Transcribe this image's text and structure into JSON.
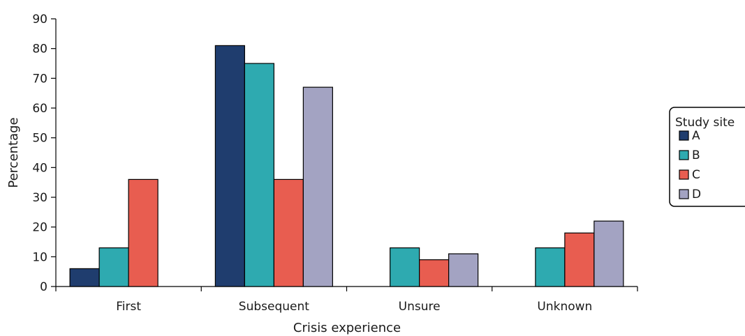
{
  "chart_data": {
    "type": "bar",
    "xlabel": "Crisis experience",
    "ylabel": "Percentage",
    "ylim": [
      0,
      90
    ],
    "yticks": [
      0,
      10,
      20,
      30,
      40,
      50,
      60,
      70,
      80,
      90
    ],
    "grid": false,
    "legend_position": "right",
    "legend_title": "Study site",
    "categories": [
      "First",
      "Subsequent",
      "Unsure",
      "Unknown"
    ],
    "series": [
      {
        "name": "A",
        "color": "#1f3d6e",
        "values": [
          6,
          81,
          null,
          null
        ]
      },
      {
        "name": "B",
        "color": "#2eaab0",
        "values": [
          13,
          75,
          13,
          13
        ]
      },
      {
        "name": "C",
        "color": "#e85d50",
        "values": [
          36,
          36,
          9,
          18
        ]
      },
      {
        "name": "D",
        "color": "#a3a3c2",
        "values": [
          null,
          67,
          11,
          22
        ]
      }
    ]
  }
}
